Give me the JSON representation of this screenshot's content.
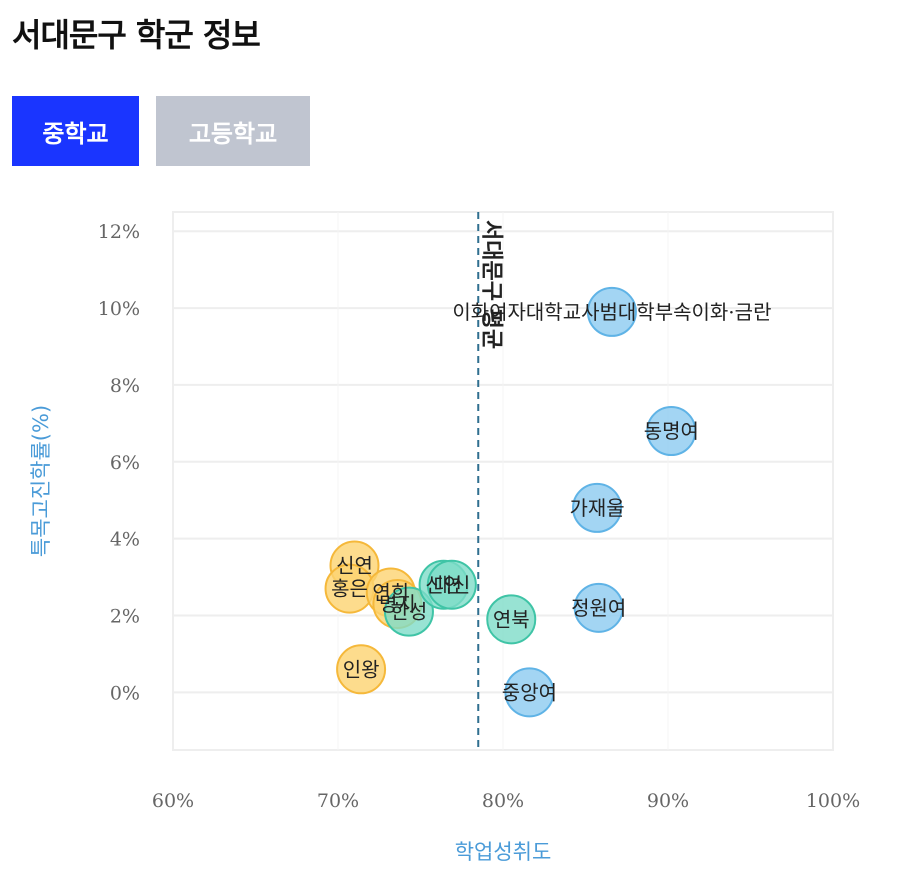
{
  "title": "서대문구 학군 정보",
  "tabs": [
    {
      "label": "중학교",
      "active": true
    },
    {
      "label": "고등학교",
      "active": false
    }
  ],
  "colors": {
    "accent": "#1a35ff",
    "inactive_tab": "#c0c5d0",
    "axis_title": "#4a9bd8",
    "group1": "#8ccbf0",
    "group2": "#fcd371",
    "group3": "#7edcc8"
  },
  "chart_data": {
    "type": "scatter",
    "xlabel": "학업성취도",
    "ylabel": "특목고진학률(%)",
    "xlim": [
      60,
      100
    ],
    "ylim": [
      -1.5,
      12.5
    ],
    "x_ticks": [
      "60%",
      "70%",
      "80%",
      "90%",
      "100%"
    ],
    "y_ticks": [
      "0%",
      "2%",
      "4%",
      "6%",
      "8%",
      "10%",
      "12%"
    ],
    "grid": true,
    "reference_line": {
      "x": 78.5,
      "label": "서대문구 평균"
    },
    "points": [
      {
        "label": "이화여자대학교사범대학부속이화·금란",
        "x": 86.6,
        "y": 9.9,
        "group": 1
      },
      {
        "label": "동명여",
        "x": 90.2,
        "y": 6.8,
        "group": 1
      },
      {
        "label": "가재울",
        "x": 85.7,
        "y": 4.8,
        "group": 1
      },
      {
        "label": "정원여",
        "x": 85.8,
        "y": 2.2,
        "group": 1
      },
      {
        "label": "중앙여",
        "x": 81.6,
        "y": 0.0,
        "group": 1
      },
      {
        "label": "신연",
        "x": 71.0,
        "y": 3.3,
        "group": 2
      },
      {
        "label": "홍은",
        "x": 70.7,
        "y": 2.7,
        "group": 2
      },
      {
        "label": "연희",
        "x": 73.2,
        "y": 2.6,
        "group": 2
      },
      {
        "label": "명지",
        "x": 73.6,
        "y": 2.3,
        "group": 2
      },
      {
        "label": "인왕",
        "x": 71.4,
        "y": 0.6,
        "group": 2
      },
      {
        "label": "한성",
        "x": 74.3,
        "y": 2.1,
        "group": 3
      },
      {
        "label": "신연",
        "x": 76.4,
        "y": 2.8,
        "group": 3
      },
      {
        "label": "대신",
        "x": 76.9,
        "y": 2.8,
        "group": 3
      },
      {
        "label": "연북",
        "x": 80.5,
        "y": 1.9,
        "group": 3
      }
    ]
  }
}
